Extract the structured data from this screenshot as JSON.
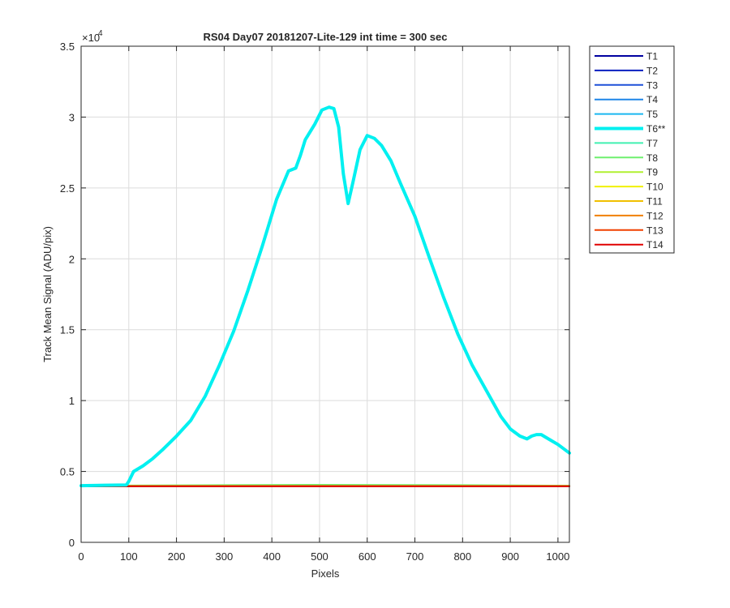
{
  "chart_data": {
    "type": "line",
    "title": "RS04 Day07 20181207-Lite-129 int time = 300 sec",
    "xlabel": "Pixels",
    "ylabel": "Track Mean Signal (ADU/pix)",
    "xlim": [
      0,
      1024
    ],
    "ylim": [
      0,
      35000
    ],
    "y_exponent_label": "×10",
    "y_exponent_power": "4",
    "x_ticks": [
      0,
      100,
      200,
      300,
      400,
      500,
      600,
      700,
      800,
      900,
      1000
    ],
    "x_tick_labels": [
      "0",
      "100",
      "200",
      "300",
      "400",
      "500",
      "600",
      "700",
      "800",
      "900",
      "1000"
    ],
    "y_ticks": [
      0,
      5000,
      10000,
      15000,
      20000,
      25000,
      30000,
      35000
    ],
    "y_tick_labels": [
      "0",
      "0.5",
      "1",
      "1.5",
      "2",
      "2.5",
      "3",
      "3.5"
    ],
    "grid": true,
    "legend_position": "outside-right-top",
    "series": [
      {
        "name": "T1",
        "color": "#0000a0",
        "width": 2,
        "x": [
          0,
          1024
        ],
        "y": [
          3950,
          3950
        ]
      },
      {
        "name": "T2",
        "color": "#0a1fc0",
        "width": 2,
        "x": [
          0,
          1024
        ],
        "y": [
          3955,
          3955
        ]
      },
      {
        "name": "T3",
        "color": "#1e50d8",
        "width": 2,
        "x": [
          0,
          1024
        ],
        "y": [
          3960,
          3960
        ]
      },
      {
        "name": "T4",
        "color": "#1e86e8",
        "width": 2,
        "x": [
          0,
          1024
        ],
        "y": [
          3965,
          3965
        ]
      },
      {
        "name": "T5",
        "color": "#1ab6f0",
        "width": 2,
        "x": [
          0,
          1024
        ],
        "y": [
          3970,
          3970
        ]
      },
      {
        "name": "T6**",
        "color": "#00f0f0",
        "width": 4,
        "x": [
          0,
          95,
          100,
          110,
          130,
          150,
          170,
          200,
          230,
          260,
          290,
          320,
          350,
          380,
          410,
          435,
          450,
          460,
          470,
          490,
          505,
          520,
          530,
          540,
          550,
          560,
          570,
          585,
          600,
          615,
          630,
          650,
          670,
          700,
          730,
          760,
          790,
          820,
          850,
          880,
          900,
          920,
          935,
          945,
          955,
          965,
          980,
          1000,
          1024
        ],
        "y": [
          4000,
          4050,
          4300,
          5000,
          5400,
          5900,
          6500,
          7500,
          8600,
          10300,
          12500,
          14900,
          17800,
          20900,
          24200,
          26200,
          26400,
          27300,
          28400,
          29500,
          30500,
          30700,
          30600,
          29300,
          26000,
          23900,
          25400,
          27700,
          28700,
          28500,
          28000,
          26900,
          25300,
          23000,
          20100,
          17300,
          14700,
          12500,
          10700,
          8900,
          8000,
          7500,
          7300,
          7500,
          7600,
          7600,
          7300,
          6900,
          6300
        ]
      },
      {
        "name": "T7",
        "color": "#40f0b0",
        "width": 2,
        "x": [
          0,
          1024
        ],
        "y": [
          3990,
          3990
        ]
      },
      {
        "name": "T8",
        "color": "#6ef06e",
        "width": 2,
        "x": [
          0,
          300,
          500,
          800,
          1024
        ],
        "y": [
          4000,
          4040,
          4060,
          4040,
          4000
        ]
      },
      {
        "name": "T9",
        "color": "#b0f030",
        "width": 2,
        "x": [
          0,
          1024
        ],
        "y": [
          3985,
          3985
        ]
      },
      {
        "name": "T10",
        "color": "#f0f000",
        "width": 2,
        "x": [
          0,
          1024
        ],
        "y": [
          3975,
          3975
        ]
      },
      {
        "name": "T11",
        "color": "#f0c000",
        "width": 2,
        "x": [
          0,
          1024
        ],
        "y": [
          3970,
          3970
        ]
      },
      {
        "name": "T12",
        "color": "#f08000",
        "width": 2,
        "x": [
          0,
          1024
        ],
        "y": [
          3965,
          3965
        ]
      },
      {
        "name": "T13",
        "color": "#f04000",
        "width": 2,
        "x": [
          0,
          1024
        ],
        "y": [
          3960,
          3960
        ]
      },
      {
        "name": "T14",
        "color": "#e00000",
        "width": 2,
        "x": [
          0,
          1024
        ],
        "y": [
          3950,
          3950
        ]
      }
    ]
  }
}
